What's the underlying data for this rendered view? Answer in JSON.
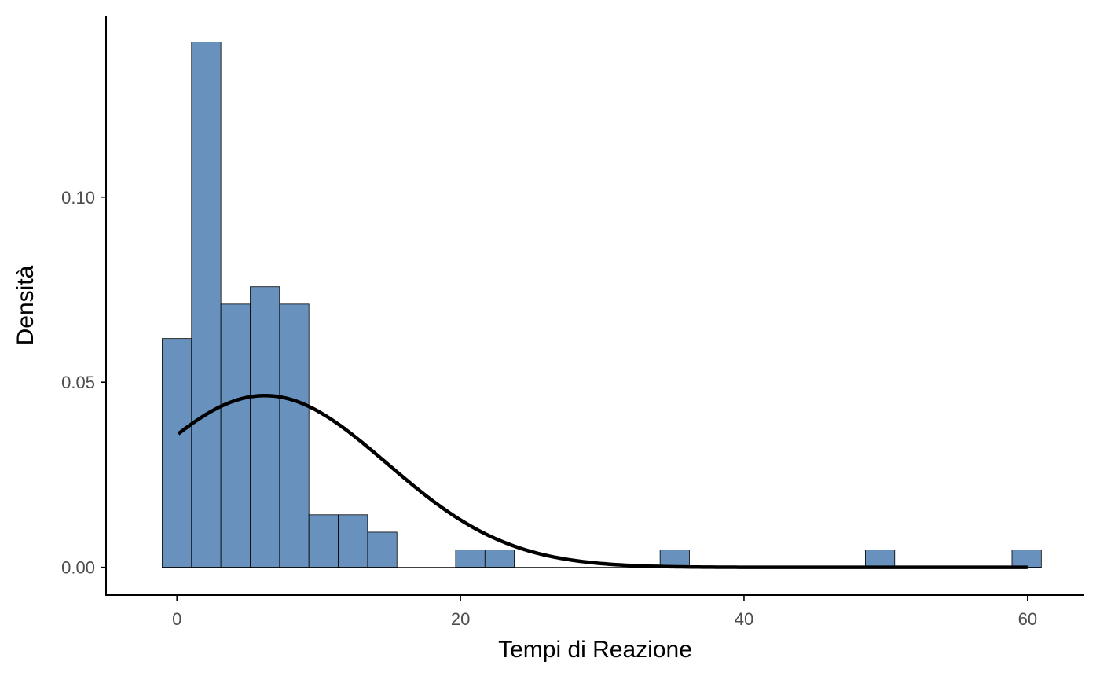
{
  "chart_data": {
    "type": "bar",
    "subtype": "histogram-with-normal-density",
    "title": "",
    "xlabel": "Tempi di Reazione",
    "ylabel": "Densità",
    "xlim": [
      -5,
      64
    ],
    "ylim": [
      -0.0075,
      0.149
    ],
    "x_ticks": [
      0,
      20,
      40,
      60
    ],
    "x_tick_labels": [
      "0",
      "20",
      "40",
      "60"
    ],
    "y_ticks": [
      0.0,
      0.05,
      0.1
    ],
    "y_tick_labels": [
      "0.00",
      "0.05",
      "0.10"
    ],
    "grid": false,
    "bin_width": 2.07,
    "bin_start": -1.04,
    "bins": [
      {
        "x0": -1.04,
        "x1": 1.03,
        "density": 0.0618
      },
      {
        "x0": 1.03,
        "x1": 3.1,
        "density": 0.1419
      },
      {
        "x0": 3.1,
        "x1": 5.17,
        "density": 0.0711
      },
      {
        "x0": 5.17,
        "x1": 7.24,
        "density": 0.0758
      },
      {
        "x0": 7.24,
        "x1": 9.31,
        "density": 0.0711
      },
      {
        "x0": 9.31,
        "x1": 11.38,
        "density": 0.0142
      },
      {
        "x0": 11.38,
        "x1": 13.45,
        "density": 0.0142
      },
      {
        "x0": 13.45,
        "x1": 15.52,
        "density": 0.0095
      },
      {
        "x0": 15.52,
        "x1": 17.59,
        "density": 0.0
      },
      {
        "x0": 17.59,
        "x1": 19.66,
        "density": 0.0
      },
      {
        "x0": 19.66,
        "x1": 21.73,
        "density": 0.0047
      },
      {
        "x0": 21.73,
        "x1": 23.8,
        "density": 0.0047
      },
      {
        "x0": 34.08,
        "x1": 36.15,
        "density": 0.0047
      },
      {
        "x0": 48.56,
        "x1": 50.63,
        "density": 0.0047
      },
      {
        "x0": 58.9,
        "x1": 60.97,
        "density": 0.0047
      }
    ],
    "baseline_x_range": [
      -1.04,
      60.97
    ],
    "density_curve": {
      "distribution": "normal",
      "mean": 6.2,
      "sd": 8.6,
      "x_range": [
        0.1,
        60
      ]
    },
    "colors": {
      "bar_fill": "#6892BD",
      "bar_stroke": "#000000",
      "curve": "#000000",
      "axis": "#000000",
      "tick_label": "#4d4d4d"
    }
  }
}
